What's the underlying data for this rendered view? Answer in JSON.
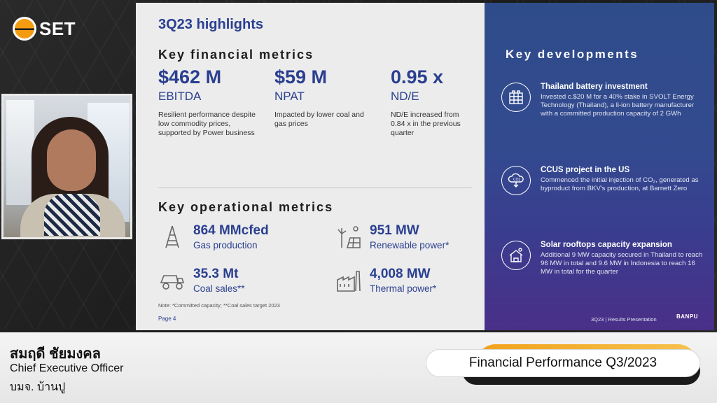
{
  "broadcast": {
    "logo_text": "SET"
  },
  "slide": {
    "title": "3Q23 highlights",
    "financial": {
      "heading": "Key financial metrics",
      "metrics": [
        {
          "value": "$462 M",
          "label": "EBITDA",
          "desc": "Resilient performance despite low commodity prices, supported by Power business"
        },
        {
          "value": "$59 M",
          "label": "NPAT",
          "desc": "Impacted by lower coal and gas prices"
        },
        {
          "value": "0.95 x",
          "label": "ND/E",
          "desc": "ND/E increased from 0.84 x in the previous quarter"
        }
      ]
    },
    "operational": {
      "heading": "Key operational metrics",
      "metrics": [
        {
          "value": "864 MMcfed",
          "label": "Gas production",
          "icon": "gas-rig-icon"
        },
        {
          "value": "951 MW",
          "label": "Renewable power*",
          "icon": "solar-wind-icon"
        },
        {
          "value": "35.3 Mt",
          "label": "Coal sales**",
          "icon": "mining-truck-icon"
        },
        {
          "value": "4,008 MW",
          "label": "Thermal power*",
          "icon": "power-plant-icon"
        }
      ]
    },
    "note": "Note: *Committed capacity;  **Coal sales target 2023",
    "page": "Page  4",
    "developments": {
      "heading": "Key developments",
      "items": [
        {
          "title": "Thailand battery investment",
          "text": "Invested c.$20 M for a 40% stake in SVOLT Energy Technology (Thailand), a li-ion battery manufacturer with a committed production capacity of 2 GWh",
          "icon": "battery-icon"
        },
        {
          "title": "CCUS project in the US",
          "text": "Commenced the initial injection of CO₂, generated as byproduct from BKV's production, at Barnett Zero",
          "icon": "co2-cloud-icon"
        },
        {
          "title": "Solar rooftops capacity expansion",
          "text": "Additional 9 MW capacity secured in Thailand to reach 96 MW in total and 9.6 MW in Indonesia to reach 16 MW in total for the quarter",
          "icon": "solar-house-icon"
        }
      ]
    },
    "footer_text": "3Q23 | Results Presentation",
    "footer_brand": "BANPU"
  },
  "lower_third": {
    "name": "สมฤดี ชัยมงคล",
    "role": "Chief Executive Officer",
    "org": "บมจ. บ้านปู",
    "topic": "Financial Performance Q3/2023"
  }
}
